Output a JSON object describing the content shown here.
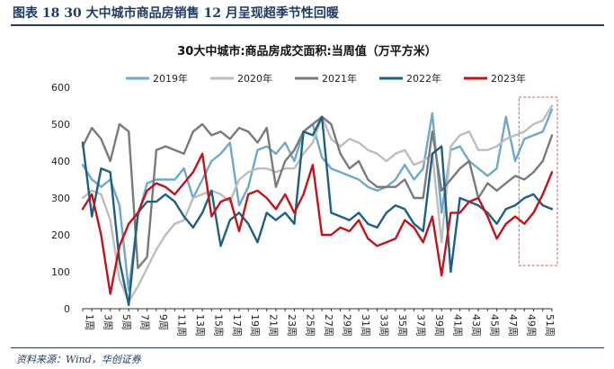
{
  "figure_header": {
    "title": "图表 18   30 大中城市商品房销售 12 月呈现超季节性回暖"
  },
  "source": "资料来源：Wind，华创证券",
  "colors": {
    "2019": "#6fa8c8",
    "2020": "#bdbdbd",
    "2021": "#7a7a7a",
    "2022": "#1f5f85",
    "2023": "#c0141c",
    "header": "#1f3a64",
    "highlight": "#e05050"
  },
  "chart_data": {
    "type": "line",
    "title": "30大中城市:商品房成交面积:当周值（万平方米）",
    "ylim": [
      0,
      600
    ],
    "yticks": [
      0,
      100,
      200,
      300,
      400,
      500,
      600
    ],
    "xlim": [
      1,
      52
    ],
    "x": [
      1,
      2,
      3,
      4,
      5,
      6,
      7,
      8,
      9,
      10,
      11,
      12,
      13,
      14,
      15,
      16,
      17,
      18,
      19,
      20,
      21,
      22,
      23,
      24,
      25,
      26,
      27,
      28,
      29,
      30,
      31,
      32,
      33,
      34,
      35,
      36,
      37,
      38,
      39,
      40,
      41,
      42,
      43,
      44,
      45,
      46,
      47,
      48,
      49,
      50,
      51,
      52
    ],
    "x_tick_labels": [
      "1周",
      "3周",
      "5周",
      "7周",
      "9周",
      "11周",
      "13周",
      "15周",
      "17周",
      "19周",
      "21周",
      "23周",
      "25周",
      "27周",
      "29周",
      "31周",
      "33周",
      "35周",
      "37周",
      "39周",
      "41周",
      "43周",
      "45周",
      "47周",
      "49周",
      "51周"
    ],
    "legend": [
      "2019年",
      "2020年",
      "2021年",
      "2022年",
      "2023年"
    ],
    "legend_position": "top",
    "highlight_box": {
      "x_from": 49,
      "x_to": 52,
      "style": "dashed"
    },
    "series": [
      {
        "name": "2019年",
        "values": [
          390,
          350,
          330,
          350,
          280,
          50,
          250,
          340,
          350,
          350,
          350,
          380,
          300,
          350,
          400,
          420,
          450,
          280,
          330,
          430,
          440,
          420,
          450,
          400,
          480,
          500,
          410,
          380,
          370,
          360,
          350,
          330,
          320,
          330,
          350,
          390,
          350,
          380,
          530,
          260,
          430,
          440,
          400,
          380,
          360,
          380,
          520,
          400,
          460,
          470,
          480,
          540
        ]
      },
      {
        "name": "2020年",
        "values": [
          300,
          320,
          310,
          240,
          80,
          20,
          60,
          110,
          160,
          200,
          230,
          240,
          300,
          310,
          320,
          310,
          290,
          350,
          370,
          380,
          380,
          370,
          380,
          380,
          420,
          450,
          520,
          460,
          440,
          460,
          450,
          430,
          420,
          400,
          420,
          430,
          390,
          400,
          420,
          180,
          440,
          470,
          480,
          430,
          430,
          440,
          460,
          470,
          480,
          500,
          510,
          550
        ]
      },
      {
        "name": "2021年",
        "values": [
          440,
          490,
          460,
          400,
          500,
          480,
          110,
          140,
          430,
          440,
          430,
          420,
          480,
          500,
          470,
          480,
          460,
          490,
          480,
          450,
          490,
          330,
          400,
          430,
          480,
          500,
          520,
          500,
          420,
          380,
          400,
          350,
          330,
          330,
          330,
          350,
          300,
          300,
          480,
          320,
          350,
          380,
          400,
          300,
          340,
          320,
          340,
          360,
          350,
          370,
          400,
          470
        ]
      },
      {
        "name": "2022年",
        "values": [
          450,
          250,
          380,
          370,
          130,
          10,
          260,
          290,
          290,
          310,
          290,
          250,
          220,
          260,
          320,
          170,
          240,
          260,
          230,
          180,
          260,
          240,
          260,
          230,
          480,
          470,
          520,
          260,
          250,
          240,
          260,
          230,
          220,
          260,
          280,
          270,
          230,
          210,
          420,
          440,
          100,
          300,
          290,
          280,
          260,
          230,
          270,
          280,
          300,
          310,
          280,
          270
        ]
      },
      {
        "name": "2023年",
        "values": [
          270,
          310,
          200,
          40,
          170,
          230,
          260,
          320,
          340,
          330,
          310,
          340,
          370,
          420,
          250,
          290,
          300,
          210,
          310,
          320,
          300,
          270,
          310,
          260,
          310,
          390,
          200,
          200,
          220,
          210,
          240,
          190,
          170,
          180,
          190,
          240,
          220,
          180,
          250,
          90,
          260,
          260,
          290,
          300,
          250,
          190,
          230,
          250,
          230,
          260,
          310,
          370
        ]
      }
    ]
  }
}
